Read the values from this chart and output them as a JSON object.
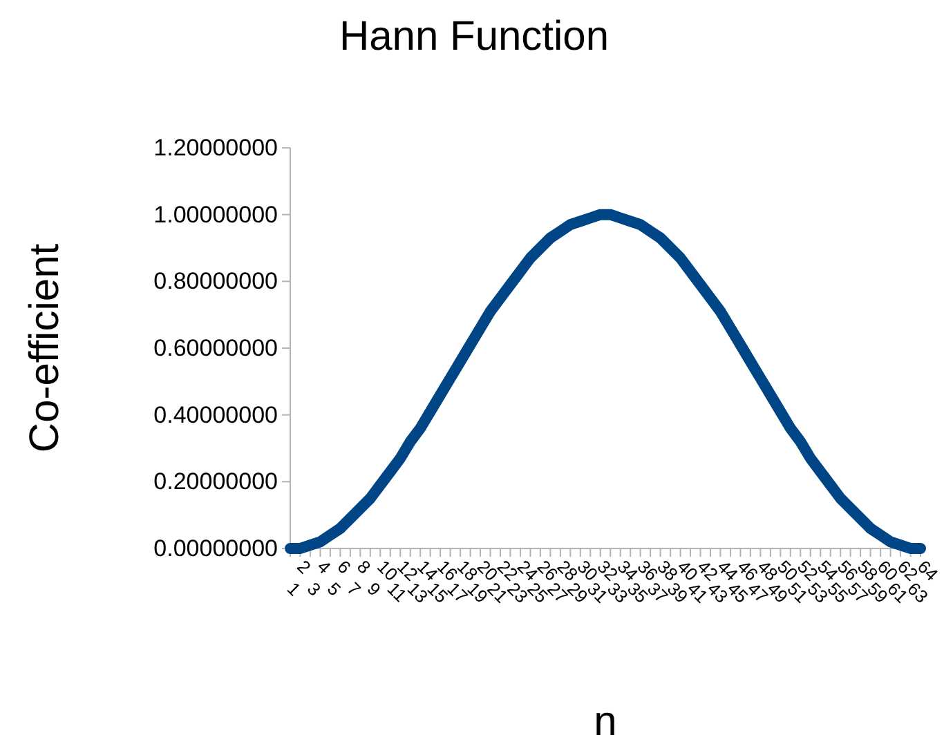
{
  "chart_data": {
    "type": "line",
    "title": "Hann Function",
    "xlabel": "n",
    "ylabel": "Co-efficient",
    "categories": [
      "1",
      "2",
      "3",
      "4",
      "5",
      "6",
      "7",
      "8",
      "9",
      "10",
      "11",
      "12",
      "13",
      "14",
      "15",
      "16",
      "17",
      "18",
      "19",
      "20",
      "21",
      "22",
      "23",
      "24",
      "25",
      "26",
      "27",
      "28",
      "29",
      "30",
      "31",
      "32",
      "33",
      "34",
      "35",
      "36",
      "37",
      "38",
      "39",
      "40",
      "41",
      "42",
      "43",
      "44",
      "45",
      "46",
      "47",
      "48",
      "49",
      "50",
      "51",
      "52",
      "53",
      "54",
      "55",
      "56",
      "57",
      "58",
      "59",
      "60",
      "61",
      "62",
      "63",
      "64"
    ],
    "series": [
      {
        "color": "#004586",
        "values": [
          0,
          0,
          0.01,
          0.02,
          0.04,
          0.06,
          0.09,
          0.12,
          0.15,
          0.19,
          0.23,
          0.27,
          0.32,
          0.36,
          0.41,
          0.46,
          0.51,
          0.56,
          0.61,
          0.66,
          0.71,
          0.75,
          0.79,
          0.83,
          0.87,
          0.9,
          0.93,
          0.95,
          0.97,
          0.98,
          0.99,
          1.0,
          1.0,
          0.99,
          0.98,
          0.97,
          0.95,
          0.93,
          0.9,
          0.87,
          0.83,
          0.79,
          0.75,
          0.71,
          0.66,
          0.61,
          0.56,
          0.51,
          0.46,
          0.41,
          0.36,
          0.32,
          0.27,
          0.23,
          0.19,
          0.15,
          0.12,
          0.09,
          0.06,
          0.04,
          0.02,
          0.01,
          0,
          0
        ]
      }
    ],
    "ylim": [
      0,
      1.2
    ],
    "yticks": [
      {
        "value": 0,
        "label": "0.00000000"
      },
      {
        "value": 0.2,
        "label": "0.20000000"
      },
      {
        "value": 0.4,
        "label": "0.40000000"
      },
      {
        "value": 0.6,
        "label": "0.60000000"
      },
      {
        "value": 0.8,
        "label": "0.80000000"
      },
      {
        "value": 1,
        "label": "1.00000000"
      },
      {
        "value": 1.2,
        "label": "1.20000000"
      }
    ],
    "grid": false,
    "marker": "none",
    "line_style": "solid"
  }
}
